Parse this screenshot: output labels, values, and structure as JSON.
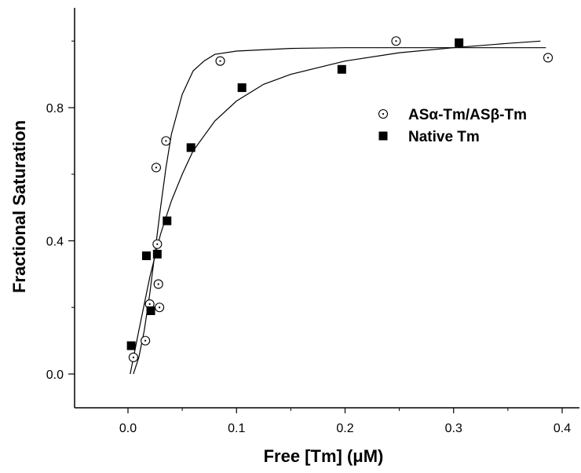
{
  "chart_data": {
    "type": "scatter",
    "xlabel": "Free [Tm]   (μM)",
    "ylabel": "Fractional Saturation",
    "xlim": [
      -0.05,
      0.42
    ],
    "ylim": [
      -0.1,
      1.1
    ],
    "x_ticks": [
      0.0,
      0.1,
      0.2,
      0.3,
      0.4
    ],
    "x_tick_labels": [
      "0.0",
      "0.1",
      "0.2",
      "0.3",
      "0.4"
    ],
    "y_ticks": [
      0.0,
      0.4,
      0.8
    ],
    "y_tick_labels": [
      "0.0",
      "0.4",
      "0.8"
    ],
    "grid": false,
    "legend_position": "right",
    "series": [
      {
        "name": "ASα-Tm/ASβ-Tm",
        "marker": "open-circle-dot",
        "color": "#000000",
        "points": [
          [
            0.005,
            0.05
          ],
          [
            0.016,
            0.1
          ],
          [
            0.02,
            0.21
          ],
          [
            0.026,
            0.62
          ],
          [
            0.027,
            0.39
          ],
          [
            0.028,
            0.27
          ],
          [
            0.029,
            0.2
          ],
          [
            0.035,
            0.7
          ],
          [
            0.085,
            0.94
          ],
          [
            0.247,
            1.0
          ],
          [
            0.387,
            0.95
          ]
        ],
        "fit": [
          [
            0.005,
            0.0
          ],
          [
            0.01,
            0.05
          ],
          [
            0.015,
            0.13
          ],
          [
            0.02,
            0.24
          ],
          [
            0.025,
            0.37
          ],
          [
            0.03,
            0.5
          ],
          [
            0.035,
            0.62
          ],
          [
            0.04,
            0.72
          ],
          [
            0.05,
            0.84
          ],
          [
            0.06,
            0.91
          ],
          [
            0.07,
            0.94
          ],
          [
            0.08,
            0.96
          ],
          [
            0.1,
            0.97
          ],
          [
            0.15,
            0.978
          ],
          [
            0.2,
            0.98
          ],
          [
            0.3,
            0.98
          ],
          [
            0.385,
            0.98
          ]
        ]
      },
      {
        "name": "Native Tm",
        "marker": "filled-square",
        "color": "#000000",
        "points": [
          [
            0.003,
            0.085
          ],
          [
            0.017,
            0.355
          ],
          [
            0.021,
            0.19
          ],
          [
            0.027,
            0.36
          ],
          [
            0.036,
            0.46
          ],
          [
            0.058,
            0.68
          ],
          [
            0.105,
            0.86
          ],
          [
            0.197,
            0.915
          ],
          [
            0.305,
            0.995
          ]
        ],
        "fit": [
          [
            0.002,
            0.0
          ],
          [
            0.01,
            0.13
          ],
          [
            0.02,
            0.29
          ],
          [
            0.03,
            0.42
          ],
          [
            0.04,
            0.52
          ],
          [
            0.05,
            0.6
          ],
          [
            0.06,
            0.67
          ],
          [
            0.08,
            0.76
          ],
          [
            0.1,
            0.82
          ],
          [
            0.125,
            0.87
          ],
          [
            0.15,
            0.9
          ],
          [
            0.2,
            0.94
          ],
          [
            0.25,
            0.965
          ],
          [
            0.3,
            0.98
          ],
          [
            0.35,
            0.993
          ],
          [
            0.38,
            1.0
          ]
        ]
      }
    ]
  }
}
